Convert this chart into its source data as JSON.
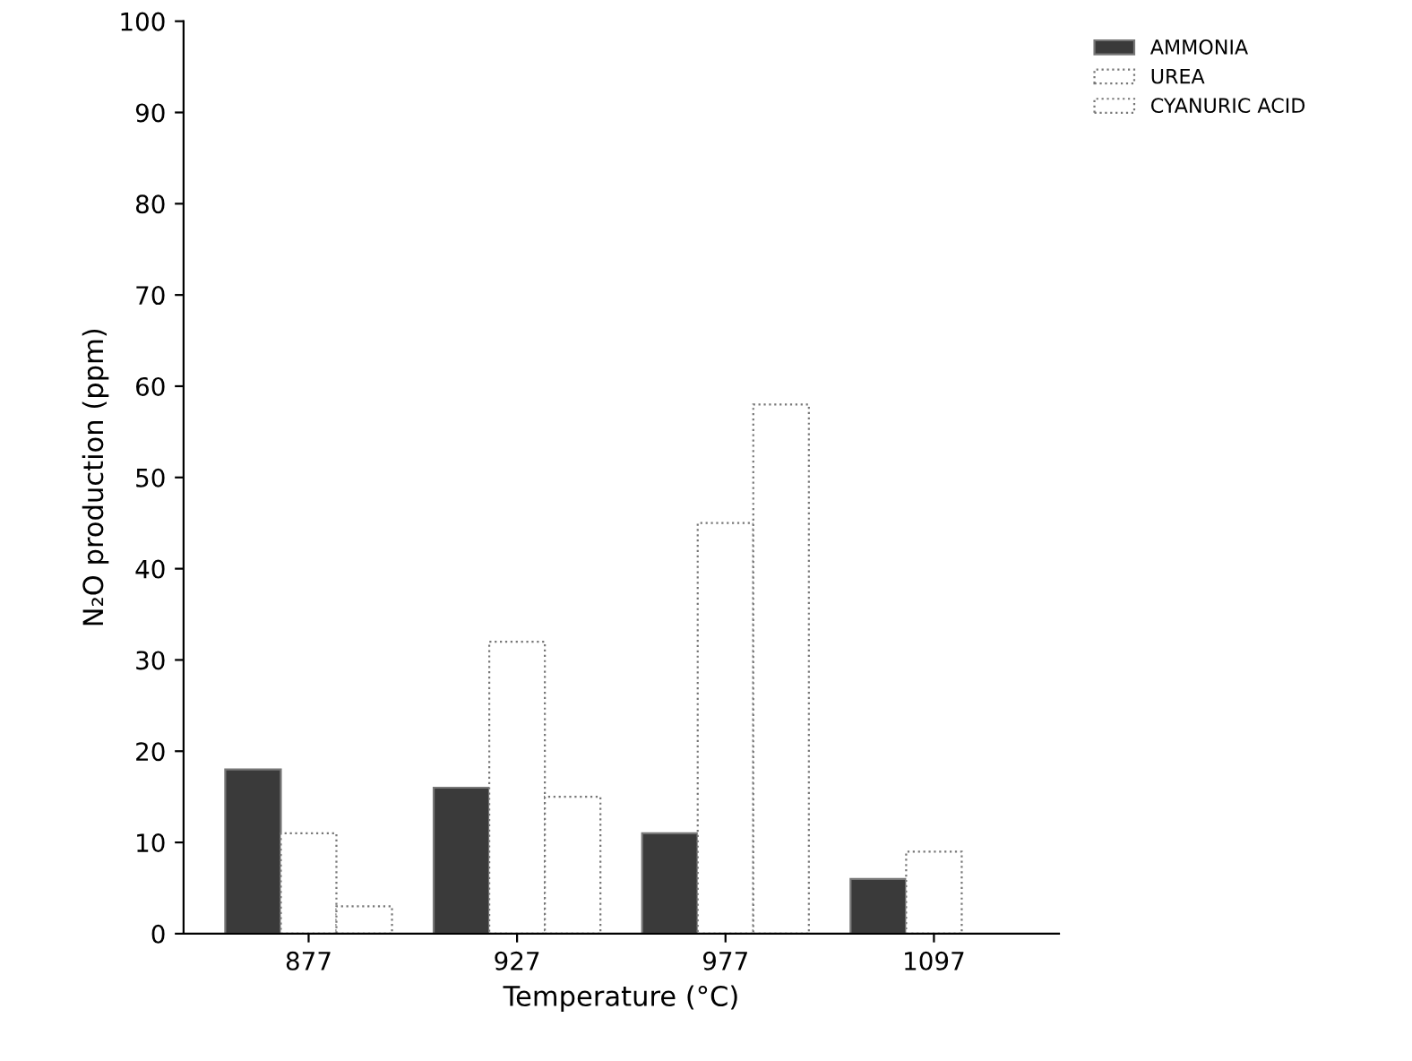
{
  "chart_data": {
    "type": "bar",
    "xlabel": "Temperature (°C)",
    "ylabel": "N₂O production (ppm)",
    "categories": [
      "877",
      "927",
      "977",
      "1097"
    ],
    "series": [
      {
        "name": "AMMONIA",
        "color": "#3a3a3a",
        "values": [
          18,
          16,
          11,
          6
        ]
      },
      {
        "name": "UREA",
        "color": "#ffffff",
        "values": [
          11,
          32,
          45,
          9
        ]
      },
      {
        "name": "CYANURIC ACID",
        "color": "#ffffff",
        "values": [
          3,
          15,
          58,
          null
        ]
      }
    ],
    "ylim": [
      0,
      100
    ],
    "yticks": [
      0,
      10,
      20,
      30,
      40,
      50,
      60,
      70,
      80,
      90,
      100
    ],
    "grid": false,
    "legend": "top right"
  }
}
